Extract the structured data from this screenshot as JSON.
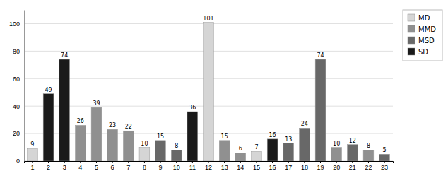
{
  "chart_data": {
    "type": "bar",
    "stacked": true,
    "data_labels": true,
    "grid": true,
    "legend": "right",
    "categories": [
      "1",
      "2",
      "3",
      "4",
      "5",
      "6",
      "7",
      "8",
      "9",
      "10",
      "11",
      "12",
      "13",
      "14",
      "15",
      "16",
      "17",
      "18",
      "19",
      "20",
      "21",
      "22",
      "23"
    ],
    "series": [
      {
        "name": "MD",
        "color": "#d5d5d5",
        "values": [
          9,
          null,
          null,
          null,
          null,
          null,
          null,
          10,
          null,
          null,
          null,
          101,
          null,
          null,
          7,
          null,
          null,
          null,
          null,
          null,
          null,
          null,
          null
        ]
      },
      {
        "name": "MMD",
        "color": "#909090",
        "values": [
          null,
          null,
          null,
          26,
          39,
          23,
          22,
          null,
          null,
          null,
          null,
          null,
          15,
          6,
          null,
          null,
          null,
          null,
          null,
          10,
          null,
          8,
          null
        ]
      },
      {
        "name": "MSD",
        "color": "#686868",
        "values": [
          null,
          null,
          null,
          null,
          null,
          null,
          null,
          null,
          15,
          8,
          null,
          null,
          null,
          null,
          null,
          null,
          13,
          24,
          74,
          null,
          12,
          null,
          5
        ]
      },
      {
        "name": "SD",
        "color": "#1a1a1a",
        "values": [
          null,
          49,
          74,
          null,
          null,
          null,
          null,
          null,
          null,
          null,
          36,
          null,
          null,
          null,
          null,
          16,
          null,
          null,
          null,
          null,
          null,
          null,
          null
        ]
      }
    ],
    "ylim": [
      0,
      110
    ],
    "yticks": [
      0,
      20,
      40,
      60,
      80,
      100
    ]
  }
}
